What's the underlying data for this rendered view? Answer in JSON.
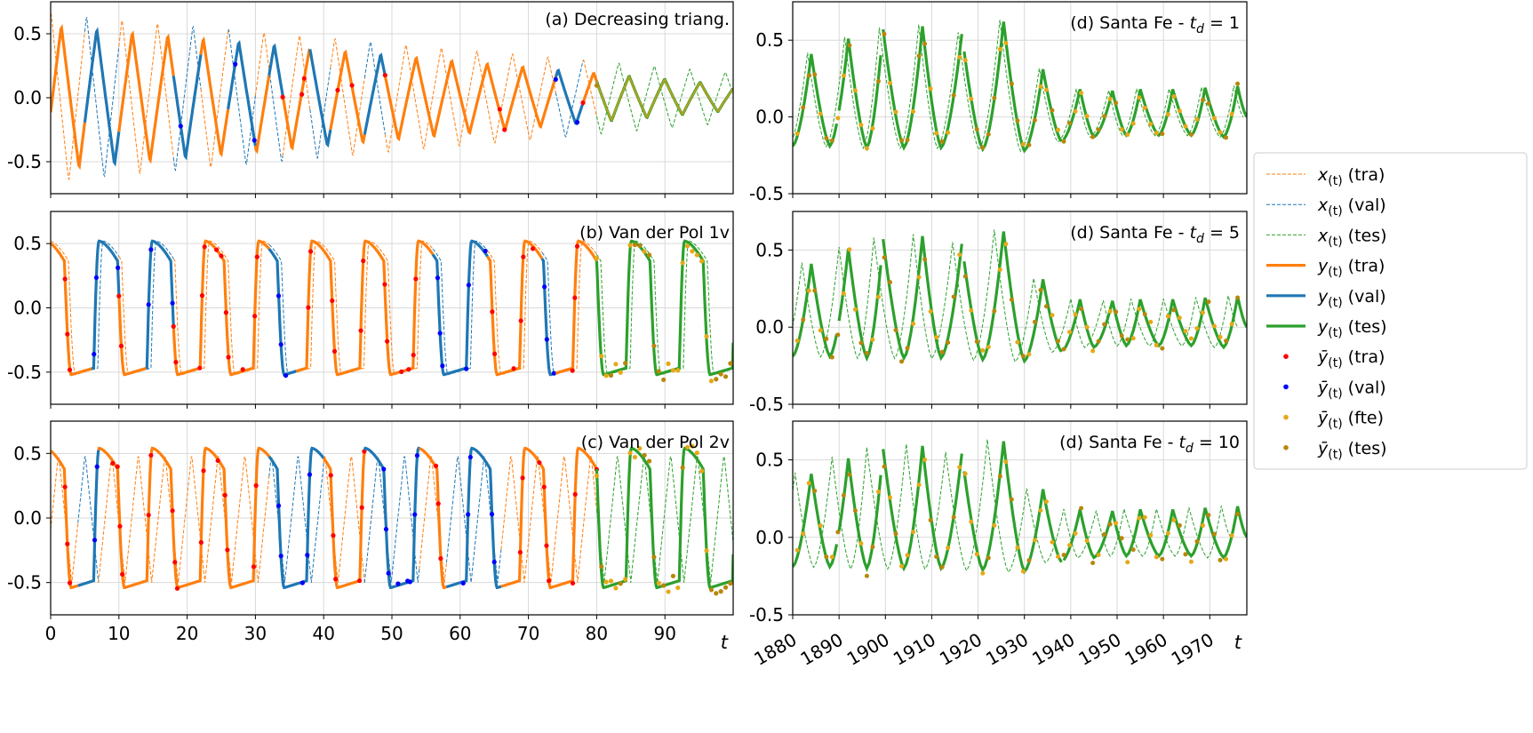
{
  "chart_data": [
    {
      "type": "line",
      "panel": "a",
      "title": "(a) Decreasing triang.",
      "xlabel": "t",
      "xlim": [
        0,
        100
      ],
      "ylim": [
        -0.75,
        0.75
      ],
      "xticks": [
        0,
        10,
        20,
        30,
        40,
        50,
        60,
        70,
        80,
        90
      ],
      "yticks": [
        0.5,
        0.0,
        -0.5
      ],
      "ytick_labels": [
        "0.5",
        "0.0",
        "-0.5"
      ],
      "signal": {
        "shape": "decaying-triangle",
        "amplitude_start": 0.57,
        "amplitude_end": 0.1,
        "period": 5.2,
        "input_lag": 1.5
      },
      "segments": [
        {
          "split": "tra",
          "x": [
            0,
            5
          ]
        },
        {
          "split": "val",
          "x": [
            5,
            10
          ]
        },
        {
          "split": "tra",
          "x": [
            10,
            18
          ]
        },
        {
          "split": "val",
          "x": [
            18,
            22
          ]
        },
        {
          "split": "tra",
          "x": [
            22,
            26
          ]
        },
        {
          "split": "val",
          "x": [
            26,
            30
          ]
        },
        {
          "split": "tra",
          "x": [
            30,
            32
          ]
        },
        {
          "split": "val",
          "x": [
            32,
            34
          ]
        },
        {
          "split": "tra",
          "x": [
            34,
            38
          ]
        },
        {
          "split": "val",
          "x": [
            38,
            41
          ]
        },
        {
          "split": "tra",
          "x": [
            41,
            46
          ]
        },
        {
          "split": "val",
          "x": [
            46,
            49
          ]
        },
        {
          "split": "tra",
          "x": [
            49,
            74
          ]
        },
        {
          "split": "val",
          "x": [
            74,
            78
          ]
        },
        {
          "split": "tra",
          "x": [
            78,
            80
          ]
        },
        {
          "split": "tes",
          "x": [
            80,
            100
          ]
        }
      ]
    },
    {
      "type": "line",
      "panel": "b",
      "title": "(b) Van der Pol 1v",
      "xlabel": "t",
      "xlim": [
        0,
        100
      ],
      "ylim": [
        -0.75,
        0.75
      ],
      "xticks": [
        0,
        10,
        20,
        30,
        40,
        50,
        60,
        70,
        80,
        90
      ],
      "yticks": [
        0.5,
        0.0,
        -0.5
      ],
      "ytick_labels": [
        "0.5",
        "0.0",
        "-0.5"
      ],
      "signal": {
        "shape": "relaxation-oscillation",
        "amplitude": 0.52,
        "period": 7.8,
        "input_lag": 0.6
      },
      "segments": [
        {
          "split": "tra",
          "x": [
            0,
            6
          ]
        },
        {
          "split": "val",
          "x": [
            6,
            10
          ]
        },
        {
          "split": "tra",
          "x": [
            10,
            14
          ]
        },
        {
          "split": "val",
          "x": [
            14,
            18
          ]
        },
        {
          "split": "tra",
          "x": [
            18,
            32
          ]
        },
        {
          "split": "val",
          "x": [
            32,
            36
          ]
        },
        {
          "split": "tra",
          "x": [
            36,
            56
          ]
        },
        {
          "split": "val",
          "x": [
            56,
            64
          ]
        },
        {
          "split": "tra",
          "x": [
            64,
            72
          ]
        },
        {
          "split": "val",
          "x": [
            72,
            74
          ]
        },
        {
          "split": "tra",
          "x": [
            74,
            80
          ]
        },
        {
          "split": "tes",
          "x": [
            80,
            100
          ]
        }
      ]
    },
    {
      "type": "line",
      "panel": "c",
      "title": "(c) Van der Pol 2v",
      "xlabel": "t",
      "xlim": [
        0,
        100
      ],
      "ylim": [
        -0.75,
        0.75
      ],
      "xticks": [
        0,
        10,
        20,
        30,
        40,
        50,
        60,
        70,
        80,
        90
      ],
      "xtick_labels": [
        "0",
        "10",
        "20",
        "30",
        "40",
        "50",
        "60",
        "70",
        "80",
        "90"
      ],
      "yticks": [
        0.5,
        0.0,
        -0.5
      ],
      "ytick_labels": [
        "0.5",
        "0.0",
        "-0.5"
      ],
      "signal": {
        "shape": "relaxation-oscillation",
        "amplitude": 0.54,
        "period": 7.8,
        "input_lag": 0.3,
        "input_period": 3.9
      },
      "segments": [
        {
          "split": "tra",
          "x": [
            0,
            4
          ]
        },
        {
          "split": "val",
          "x": [
            4,
            7
          ]
        },
        {
          "split": "tra",
          "x": [
            7,
            32
          ]
        },
        {
          "split": "val",
          "x": [
            32,
            40
          ]
        },
        {
          "split": "tra",
          "x": [
            40,
            46
          ]
        },
        {
          "split": "val",
          "x": [
            46,
            54
          ]
        },
        {
          "split": "tra",
          "x": [
            54,
            58
          ]
        },
        {
          "split": "val",
          "x": [
            58,
            66
          ]
        },
        {
          "split": "tra",
          "x": [
            66,
            80
          ]
        },
        {
          "split": "tes",
          "x": [
            80,
            100
          ]
        }
      ]
    },
    {
      "type": "line",
      "panel": "d1",
      "title": "(d) Santa Fe - ",
      "title_var": "t",
      "title_sub": "d",
      "title_suffix": " = 1",
      "xlabel": "t",
      "xlim": [
        1880,
        1978
      ],
      "ylim": [
        -0.5,
        0.75
      ],
      "xticks": [
        1880,
        1890,
        1900,
        1910,
        1920,
        1930,
        1940,
        1950,
        1960,
        1970
      ],
      "yticks": [
        0.5,
        0.0,
        -0.5
      ],
      "ytick_labels": [
        "0.5",
        "0.0",
        "-0.5"
      ],
      "input_lag": 1,
      "peaks": [
        {
          "x": 1884,
          "y": 0.41
        },
        {
          "x": 1892,
          "y": 0.51
        },
        {
          "x": 1899.5,
          "y": 0.57
        },
        {
          "x": 1908,
          "y": 0.59
        },
        {
          "x": 1916.5,
          "y": 0.54
        },
        {
          "x": 1925.5,
          "y": 0.62
        },
        {
          "x": 1934,
          "y": 0.31
        },
        {
          "x": 1942,
          "y": 0.18
        },
        {
          "x": 1949,
          "y": 0.17
        },
        {
          "x": 1955,
          "y": 0.18
        },
        {
          "x": 1962,
          "y": 0.18
        },
        {
          "x": 1969,
          "y": 0.19
        },
        {
          "x": 1976,
          "y": 0.2
        }
      ],
      "troughs": [
        {
          "x": 1880,
          "y": -0.19
        },
        {
          "x": 1888,
          "y": -0.19
        },
        {
          "x": 1896,
          "y": -0.2
        },
        {
          "x": 1904,
          "y": -0.2
        },
        {
          "x": 1912,
          "y": -0.2
        },
        {
          "x": 1921,
          "y": -0.21
        },
        {
          "x": 1930,
          "y": -0.22
        },
        {
          "x": 1938,
          "y": -0.16
        },
        {
          "x": 1945,
          "y": -0.13
        },
        {
          "x": 1952,
          "y": -0.12
        },
        {
          "x": 1959,
          "y": -0.12
        },
        {
          "x": 1966,
          "y": -0.12
        },
        {
          "x": 1973,
          "y": -0.13
        },
        {
          "x": 1978,
          "y": 0.0
        }
      ]
    },
    {
      "type": "line",
      "panel": "d5",
      "title": "(d) Santa Fe - ",
      "title_var": "t",
      "title_sub": "d",
      "title_suffix": " = 5",
      "xlabel": "t",
      "xlim": [
        1880,
        1978
      ],
      "ylim": [
        -0.5,
        0.75
      ],
      "xticks": [
        1880,
        1890,
        1900,
        1910,
        1920,
        1930,
        1940,
        1950,
        1960,
        1970
      ],
      "yticks": [
        0.5,
        0.0,
        -0.5
      ],
      "ytick_labels": [
        "0.5",
        "0.0",
        "-0.5"
      ],
      "input_lag": 5,
      "peaks": [
        {
          "x": 1884,
          "y": 0.41
        },
        {
          "x": 1892,
          "y": 0.51
        },
        {
          "x": 1899.5,
          "y": 0.57
        },
        {
          "x": 1908,
          "y": 0.59
        },
        {
          "x": 1916.5,
          "y": 0.54
        },
        {
          "x": 1925.5,
          "y": 0.62
        },
        {
          "x": 1934,
          "y": 0.31
        },
        {
          "x": 1942,
          "y": 0.18
        },
        {
          "x": 1949,
          "y": 0.17
        },
        {
          "x": 1955,
          "y": 0.18
        },
        {
          "x": 1962,
          "y": 0.18
        },
        {
          "x": 1969,
          "y": 0.19
        },
        {
          "x": 1976,
          "y": 0.2
        }
      ],
      "troughs": [
        {
          "x": 1880,
          "y": -0.19
        },
        {
          "x": 1888,
          "y": -0.19
        },
        {
          "x": 1896,
          "y": -0.2
        },
        {
          "x": 1904,
          "y": -0.2
        },
        {
          "x": 1912,
          "y": -0.2
        },
        {
          "x": 1921,
          "y": -0.21
        },
        {
          "x": 1930,
          "y": -0.22
        },
        {
          "x": 1938,
          "y": -0.16
        },
        {
          "x": 1945,
          "y": -0.13
        },
        {
          "x": 1952,
          "y": -0.12
        },
        {
          "x": 1959,
          "y": -0.12
        },
        {
          "x": 1966,
          "y": -0.12
        },
        {
          "x": 1973,
          "y": -0.13
        },
        {
          "x": 1978,
          "y": 0.0
        }
      ]
    },
    {
      "type": "line",
      "panel": "d10",
      "title": "(d) Santa Fe - ",
      "title_var": "t",
      "title_sub": "d",
      "title_suffix": " = 10",
      "xlabel": "t",
      "xlim": [
        1880,
        1978
      ],
      "ylim": [
        -0.5,
        0.75
      ],
      "xticks": [
        1880,
        1890,
        1900,
        1910,
        1920,
        1930,
        1940,
        1950,
        1960,
        1970
      ],
      "xtick_labels": [
        "1880",
        "1890",
        "1900",
        "1910",
        "1920",
        "1930",
        "1940",
        "1950",
        "1960",
        "1970"
      ],
      "yticks": [
        0.5,
        0.0,
        -0.5
      ],
      "ytick_labels": [
        "0.5",
        "0.0",
        "-0.5"
      ],
      "input_lag": 10,
      "peaks": [
        {
          "x": 1884,
          "y": 0.41
        },
        {
          "x": 1892,
          "y": 0.51
        },
        {
          "x": 1899.5,
          "y": 0.57
        },
        {
          "x": 1908,
          "y": 0.59
        },
        {
          "x": 1916.5,
          "y": 0.54
        },
        {
          "x": 1925.5,
          "y": 0.62
        },
        {
          "x": 1934,
          "y": 0.31
        },
        {
          "x": 1942,
          "y": 0.18
        },
        {
          "x": 1949,
          "y": 0.17
        },
        {
          "x": 1955,
          "y": 0.18
        },
        {
          "x": 1962,
          "y": 0.18
        },
        {
          "x": 1969,
          "y": 0.19
        },
        {
          "x": 1976,
          "y": 0.2
        }
      ],
      "troughs": [
        {
          "x": 1880,
          "y": -0.19
        },
        {
          "x": 1888,
          "y": -0.19
        },
        {
          "x": 1896,
          "y": -0.2
        },
        {
          "x": 1904,
          "y": -0.2
        },
        {
          "x": 1912,
          "y": -0.2
        },
        {
          "x": 1921,
          "y": -0.21
        },
        {
          "x": 1930,
          "y": -0.22
        },
        {
          "x": 1938,
          "y": -0.16
        },
        {
          "x": 1945,
          "y": -0.13
        },
        {
          "x": 1952,
          "y": -0.12
        },
        {
          "x": 1959,
          "y": -0.12
        },
        {
          "x": 1966,
          "y": -0.12
        },
        {
          "x": 1973,
          "y": -0.13
        },
        {
          "x": 1978,
          "y": 0.0
        }
      ]
    }
  ],
  "legend": {
    "placement": "right",
    "entries": [
      {
        "symbol": "x",
        "suffix": "(tra)",
        "style": "dashed-line",
        "color": "#ff7f0e"
      },
      {
        "symbol": "x",
        "suffix": "(val)",
        "style": "dashed-line",
        "color": "#1f77b4"
      },
      {
        "symbol": "x",
        "suffix": "(tes)",
        "style": "dashed-line",
        "color": "#2ca02c"
      },
      {
        "symbol": "y",
        "suffix": "(tra)",
        "style": "solid-line",
        "color": "#ff7f0e"
      },
      {
        "symbol": "y",
        "suffix": "(val)",
        "style": "solid-line",
        "color": "#1f77b4"
      },
      {
        "symbol": "y",
        "suffix": "(tes)",
        "style": "solid-line",
        "color": "#2ca02c"
      },
      {
        "symbol": "ȳ",
        "suffix": "(tra)",
        "style": "dot",
        "color": "#ff0000"
      },
      {
        "symbol": "ȳ",
        "suffix": "(val)",
        "style": "dot",
        "color": "#0000ff"
      },
      {
        "symbol": "ȳ",
        "suffix": "(fte)",
        "style": "dot",
        "color": "#e6a817"
      },
      {
        "symbol": "ȳ",
        "suffix": "(tes)",
        "style": "dot",
        "color": "#b8860b"
      }
    ],
    "subscript": "(t)"
  },
  "colors": {
    "tra": "#ff7f0e",
    "val": "#1f77b4",
    "tes": "#2ca02c",
    "dot_tra": "#ff0000",
    "dot_val": "#0000ff",
    "dot_fte": "#e6a817",
    "dot_tes": "#b8860b",
    "test_overlay": "#c8a020",
    "grid": "#d9d9d9"
  }
}
